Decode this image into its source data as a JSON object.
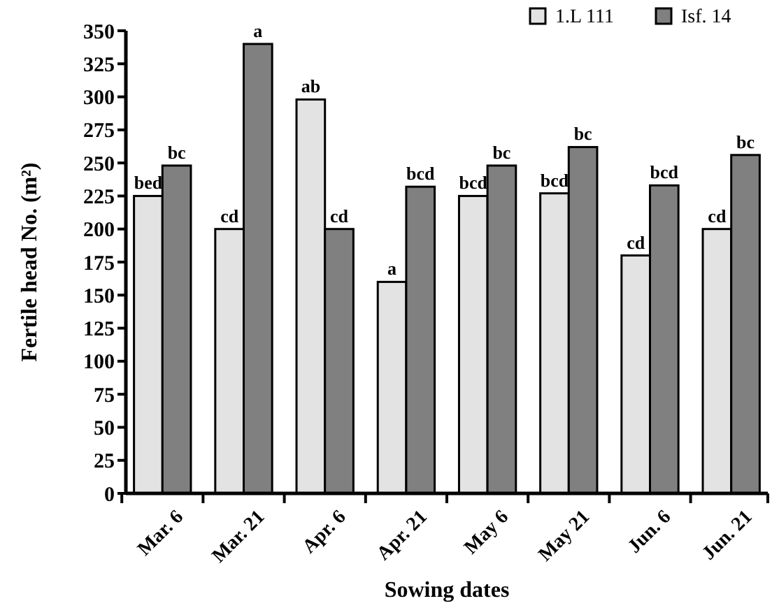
{
  "chart_data": {
    "type": "bar",
    "xlabel": "Sowing dates",
    "ylabel": "Fertile head No. (m²)",
    "categories": [
      "Mar. 6",
      "Mar. 21",
      "Apr. 6",
      "Apr. 21",
      "May 6",
      "May 21",
      "Jun. 6",
      "Jun. 21"
    ],
    "series": [
      {
        "name": "1.L 111",
        "color": "#e3e3e3",
        "values": [
          225,
          200,
          298,
          160,
          225,
          227,
          180,
          200
        ],
        "value_labels": [
          "bed",
          "cd",
          "ab",
          "a",
          "bcd",
          "bcd",
          "cd",
          "cd"
        ]
      },
      {
        "name": "Isf. 14",
        "color": "#808080",
        "values": [
          248,
          340,
          200,
          232,
          248,
          262,
          233,
          256
        ],
        "value_labels": [
          "bc",
          "a",
          "cd",
          "bcd",
          "bc",
          "bc",
          "bcd",
          "bc"
        ]
      }
    ],
    "ylim": [
      0,
      350
    ],
    "yticks": [
      0,
      25,
      50,
      75,
      100,
      125,
      150,
      175,
      200,
      225,
      250,
      275,
      300,
      325,
      350
    ],
    "grid": false,
    "legend": "top right"
  }
}
